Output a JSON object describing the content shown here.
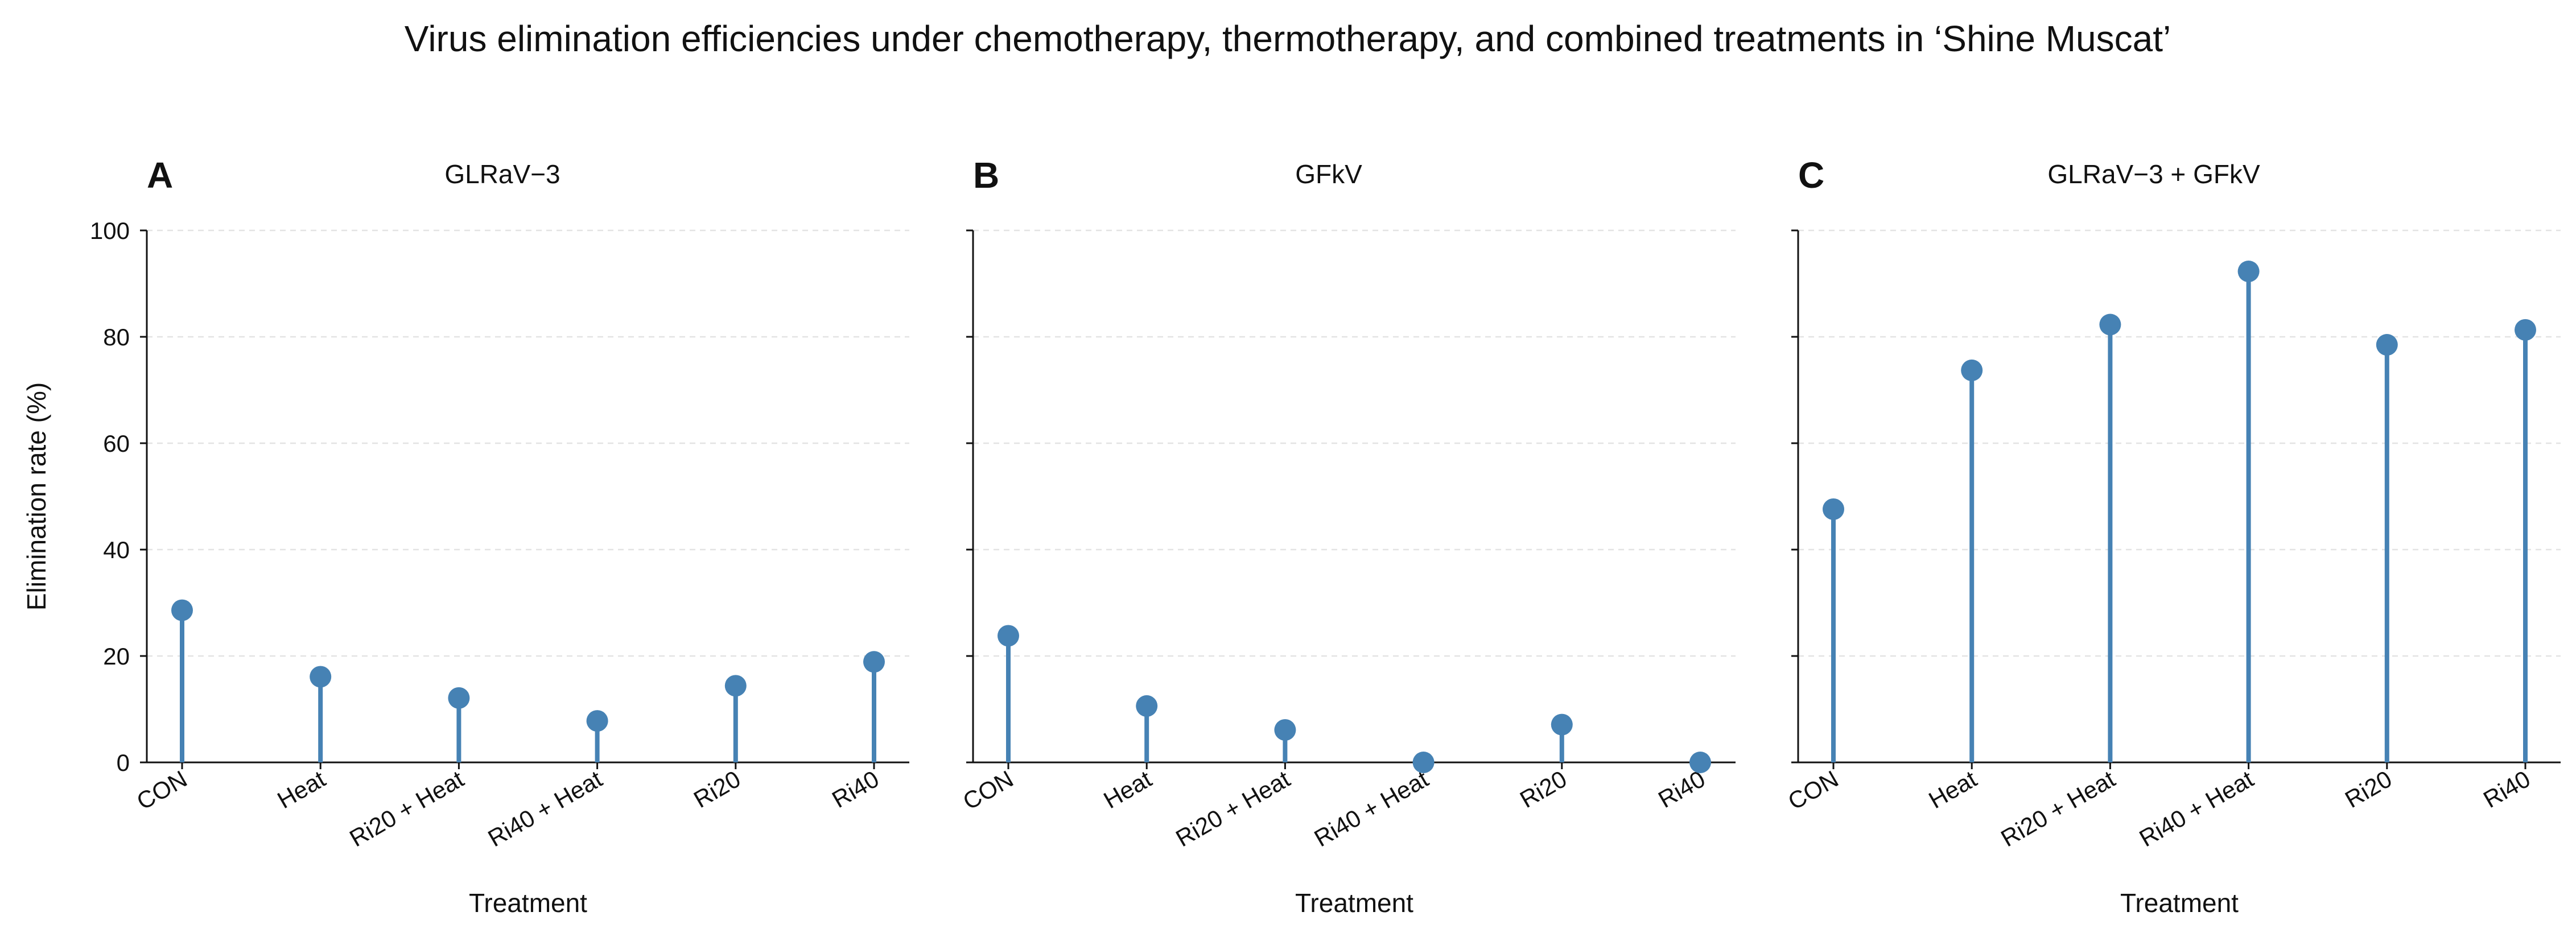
{
  "figure": {
    "title": "Virus elimination efficiencies under chemotherapy, thermotherapy, and combined treatments in ‘Shine Muscat’",
    "colors": {
      "marker": "#4682b4",
      "axis": "#111111",
      "grid": "#e3e3e3"
    }
  },
  "chart_data": [
    {
      "type": "scatter",
      "style": "lollipop",
      "panel": "A",
      "title": "GLRaV−3",
      "xlabel": "Treatment",
      "ylabel": "Elimination rate (%)",
      "categories": [
        "CON",
        "Heat",
        "Ri20 + Heat",
        "Ri40 + Heat",
        "Ri20",
        "Ri40"
      ],
      "values": [
        28.6,
        16.1,
        12.1,
        7.8,
        14.4,
        18.9
      ],
      "ylim": [
        0,
        100
      ],
      "yticks": [
        0,
        20,
        40,
        60,
        80,
        100
      ],
      "grid": "horizontal dashed",
      "legend": "none"
    },
    {
      "type": "scatter",
      "style": "lollipop",
      "panel": "B",
      "title": "GFkV",
      "xlabel": "Treatment",
      "ylabel": "",
      "categories": [
        "CON",
        "Heat",
        "Ri20 + Heat",
        "Ri40 + Heat",
        "Ri20",
        "Ri40"
      ],
      "values": [
        23.8,
        10.6,
        6.1,
        0.0,
        7.1,
        0.0
      ],
      "ylim": [
        0,
        100
      ],
      "yticks": [
        0,
        20,
        40,
        60,
        80,
        100
      ],
      "grid": "horizontal dashed",
      "legend": "none"
    },
    {
      "type": "scatter",
      "style": "lollipop",
      "panel": "C",
      "title": "GLRaV−3 + GFkV",
      "xlabel": "Treatment",
      "ylabel": "",
      "categories": [
        "CON",
        "Heat",
        "Ri20 + Heat",
        "Ri40 + Heat",
        "Ri20",
        "Ri40"
      ],
      "values": [
        47.6,
        73.7,
        82.3,
        92.3,
        78.5,
        81.3
      ],
      "ylim": [
        0,
        100
      ],
      "yticks": [
        0,
        20,
        40,
        60,
        80,
        100
      ],
      "grid": "horizontal dashed",
      "legend": "none"
    }
  ]
}
